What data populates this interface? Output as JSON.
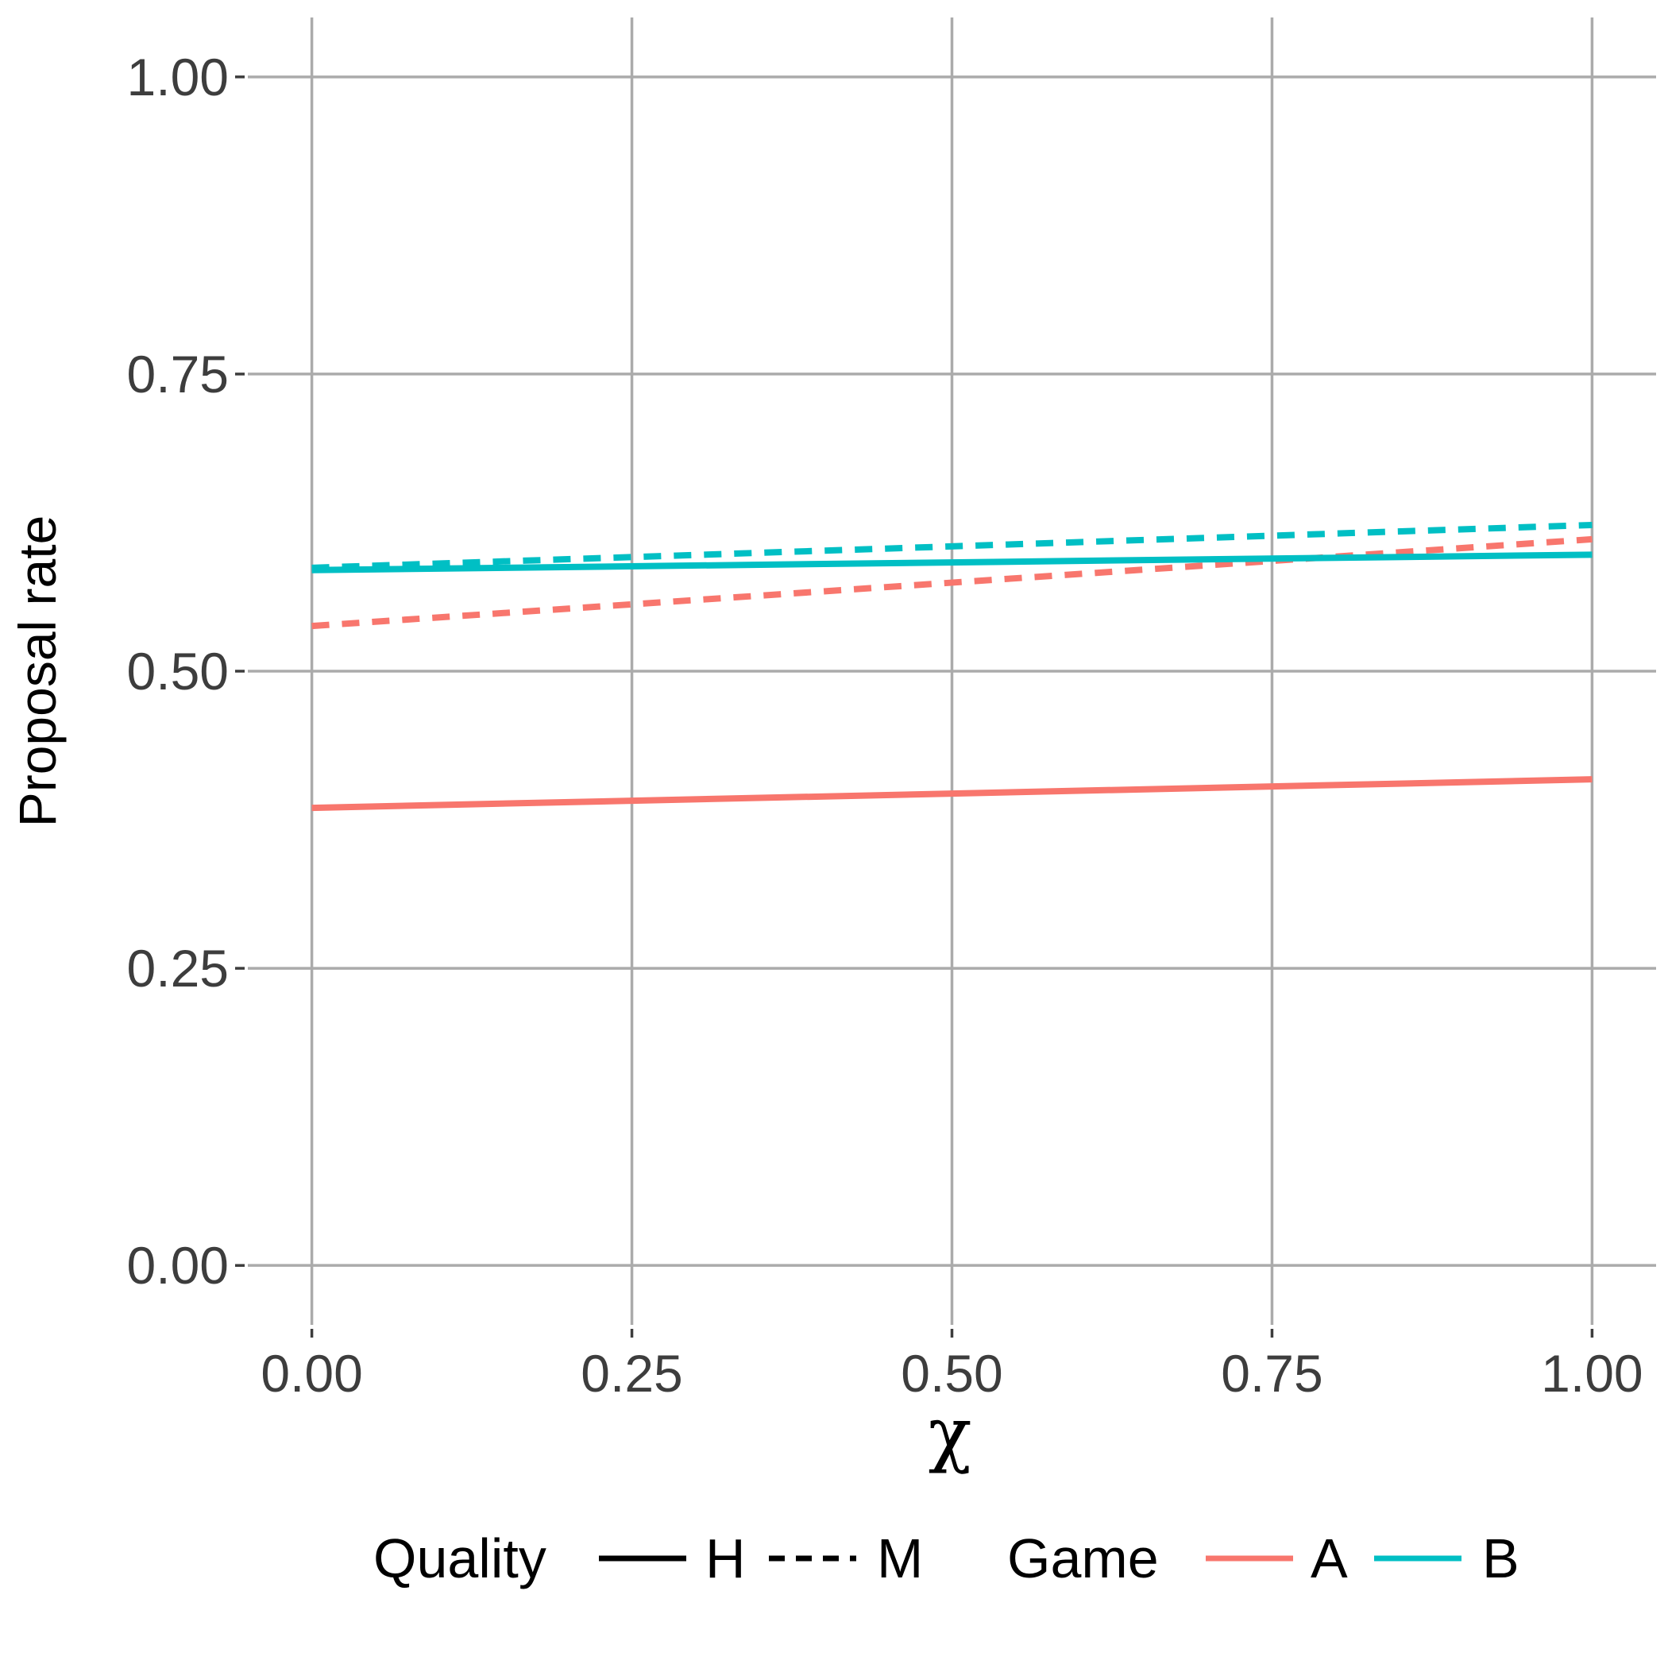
{
  "chart_data": {
    "type": "line",
    "xlabel": "χ",
    "ylabel": "Proposal rate",
    "xlim": [
      -0.05,
      1.05
    ],
    "ylim": [
      -0.05,
      1.05
    ],
    "xticks": [
      0.0,
      0.25,
      0.5,
      0.75,
      1.0
    ],
    "xtick_labels": [
      "0.00",
      "0.25",
      "0.50",
      "0.75",
      "1.00"
    ],
    "yticks": [
      0.0,
      0.25,
      0.5,
      0.75,
      1.0
    ],
    "ytick_labels": [
      "0.00",
      "0.25",
      "0.50",
      "0.75",
      "1.00"
    ],
    "grid": true,
    "legend_position": "bottom",
    "series": [
      {
        "game": "A",
        "quality": "H",
        "color": "#F8766D",
        "dash": "solid",
        "x": [
          0.0,
          1.0
        ],
        "values": [
          0.385,
          0.409
        ]
      },
      {
        "game": "A",
        "quality": "M",
        "color": "#F8766D",
        "dash": "dashed",
        "x": [
          0.0,
          1.0
        ],
        "values": [
          0.538,
          0.611
        ]
      },
      {
        "game": "B",
        "quality": "H",
        "color": "#00BFC4",
        "dash": "solid",
        "x": [
          0.0,
          1.0
        ],
        "values": [
          0.585,
          0.598
        ]
      },
      {
        "game": "B",
        "quality": "M",
        "color": "#00BFC4",
        "dash": "dashed",
        "x": [
          0.0,
          1.0
        ],
        "values": [
          0.587,
          0.623
        ]
      }
    ],
    "legend": {
      "quality_title": "Quality",
      "quality_items": [
        {
          "label": "H",
          "dash": "solid"
        },
        {
          "label": "M",
          "dash": "dashed"
        }
      ],
      "game_title": "Game",
      "game_items": [
        {
          "label": "A",
          "color": "#F8766D"
        },
        {
          "label": "B",
          "color": "#00BFC4"
        }
      ]
    }
  }
}
